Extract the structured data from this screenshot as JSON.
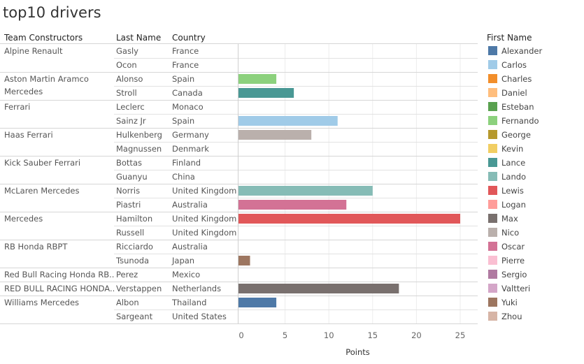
{
  "title": "top10 drivers",
  "columns": {
    "team": "Team Constructors",
    "last": "Last Name",
    "country": "Country"
  },
  "legend_title": "First Name",
  "chart_data": {
    "type": "bar",
    "orientation": "horizontal",
    "title": "top10 drivers",
    "xlabel": "Points",
    "xlim": [
      0,
      27
    ],
    "xticks": [
      0,
      5,
      10,
      15,
      20,
      25
    ],
    "grid": true,
    "legend_position": "right",
    "teams": [
      {
        "name": [
          "Alpine Renault"
        ],
        "rows": [
          {
            "last": "Gasly",
            "country": "France",
            "first": "Pierre",
            "points": 0
          },
          {
            "last": "Ocon",
            "country": "France",
            "first": "Esteban",
            "points": 0
          }
        ]
      },
      {
        "name": [
          "Aston Martin Aramco",
          "Mercedes"
        ],
        "rows": [
          {
            "last": "Alonso",
            "country": "Spain",
            "first": "Fernando",
            "points": 4
          },
          {
            "last": "Stroll",
            "country": "Canada",
            "first": "Lance",
            "points": 6
          }
        ]
      },
      {
        "name": [
          "Ferrari"
        ],
        "rows": [
          {
            "last": "Leclerc",
            "country": "Monaco",
            "first": "Charles",
            "points": 0
          },
          {
            "last": "Sainz Jr",
            "country": "Spain",
            "first": "Carlos",
            "points": 11
          }
        ]
      },
      {
        "name": [
          "Haas Ferrari"
        ],
        "rows": [
          {
            "last": "Hulkenberg",
            "country": "Germany",
            "first": "Nico",
            "points": 8
          },
          {
            "last": "Magnussen",
            "country": "Denmark",
            "first": "Kevin",
            "points": 0
          }
        ]
      },
      {
        "name": [
          "Kick Sauber Ferrari"
        ],
        "rows": [
          {
            "last": "Bottas",
            "country": "Finland",
            "first": "Valtteri",
            "points": 0
          },
          {
            "last": "Guanyu",
            "country": "China",
            "first": "Zhou",
            "points": 0
          }
        ]
      },
      {
        "name": [
          "McLaren Mercedes"
        ],
        "rows": [
          {
            "last": "Norris",
            "country": "United Kingdom",
            "first": "Lando",
            "points": 15
          },
          {
            "last": "Piastri",
            "country": "Australia",
            "first": "Oscar",
            "points": 12
          }
        ]
      },
      {
        "name": [
          "Mercedes"
        ],
        "rows": [
          {
            "last": "Hamilton",
            "country": "United Kingdom",
            "first": "Lewis",
            "points": 25
          },
          {
            "last": "Russell",
            "country": "United Kingdom",
            "first": "George",
            "points": 0
          }
        ]
      },
      {
        "name": [
          "RB Honda RBPT"
        ],
        "rows": [
          {
            "last": "Ricciardo",
            "country": "Australia",
            "first": "Daniel",
            "points": 0
          },
          {
            "last": "Tsunoda",
            "country": "Japan",
            "first": "Yuki",
            "points": 1
          }
        ]
      },
      {
        "name": [
          "Red Bull Racing Honda RB.."
        ],
        "rows": [
          {
            "last": "Perez",
            "country": "Mexico",
            "first": "Sergio",
            "points": 0
          }
        ]
      },
      {
        "name": [
          "RED BULL RACING HONDA.."
        ],
        "rows": [
          {
            "last": "Verstappen",
            "country": "Netherlands",
            "first": "Max",
            "points": 18
          }
        ]
      },
      {
        "name": [
          "Williams Mercedes"
        ],
        "rows": [
          {
            "last": "Albon",
            "country": "Thailand",
            "first": "Alexander",
            "points": 4
          },
          {
            "last": "Sargeant",
            "country": "United States",
            "first": "Logan",
            "points": 0
          }
        ]
      }
    ],
    "legend": [
      {
        "name": "Alexander",
        "color": "#4e79a7"
      },
      {
        "name": "Carlos",
        "color": "#a0cbe8"
      },
      {
        "name": "Charles",
        "color": "#f28e2b"
      },
      {
        "name": "Daniel",
        "color": "#ffbe7d"
      },
      {
        "name": "Esteban",
        "color": "#59a14f"
      },
      {
        "name": "Fernando",
        "color": "#8cd17d"
      },
      {
        "name": "George",
        "color": "#b6992d"
      },
      {
        "name": "Kevin",
        "color": "#f1ce63"
      },
      {
        "name": "Lance",
        "color": "#499894"
      },
      {
        "name": "Lando",
        "color": "#86bcb6"
      },
      {
        "name": "Lewis",
        "color": "#e15759"
      },
      {
        "name": "Logan",
        "color": "#ff9d9a"
      },
      {
        "name": "Max",
        "color": "#79706e"
      },
      {
        "name": "Nico",
        "color": "#bab0ac"
      },
      {
        "name": "Oscar",
        "color": "#d37295"
      },
      {
        "name": "Pierre",
        "color": "#fabfd2"
      },
      {
        "name": "Sergio",
        "color": "#b07aa1"
      },
      {
        "name": "Valtteri",
        "color": "#d4a6c8"
      },
      {
        "name": "Yuki",
        "color": "#9d7660"
      },
      {
        "name": "Zhou",
        "color": "#d7b5a6"
      }
    ]
  }
}
